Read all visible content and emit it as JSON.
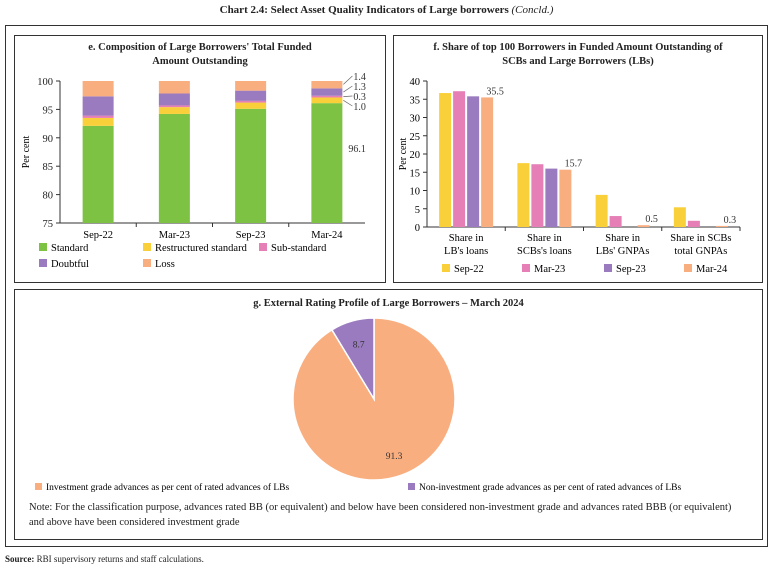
{
  "page": {
    "title": "Chart 2.4: Select Asset Quality Indicators of Large borrowers",
    "title_suffix": "(Concld.)",
    "source_label": "Source:",
    "source_text": " RBI supervisory returns and staff calculations."
  },
  "chart_data": [
    {
      "id": "e",
      "type": "bar",
      "stacked": true,
      "title": "e. Composition of Large Borrowers' Total Funded Amount Outstanding",
      "title_line1": "e. Composition of Large Borrowers' Total Funded",
      "title_line2": "Amount Outstanding",
      "xlabel": "",
      "ylabel": "Per cent",
      "ylim": [
        75,
        100
      ],
      "yticks": [
        75,
        80,
        85,
        90,
        95,
        100
      ],
      "categories": [
        "Sep-22",
        "Mar-23",
        "Sep-23",
        "Mar-24"
      ],
      "series": [
        {
          "name": "Standard",
          "color": "#7dc242",
          "values": [
            92.1,
            94.2,
            95.1,
            96.1
          ]
        },
        {
          "name": "Restructured standard",
          "color": "#f9d03a",
          "values": [
            1.4,
            1.2,
            1.1,
            1.0
          ]
        },
        {
          "name": "Sub-standard",
          "color": "#e57fb5",
          "values": [
            0.4,
            0.3,
            0.3,
            0.3
          ]
        },
        {
          "name": "Doubtful",
          "color": "#9b7bbf",
          "values": [
            3.4,
            2.1,
            1.8,
            1.3
          ]
        },
        {
          "name": "Loss",
          "color": "#f9ae80",
          "values": [
            2.7,
            2.2,
            1.7,
            1.4
          ]
        }
      ],
      "annotations": [
        {
          "category": "Mar-24",
          "series": "Loss",
          "text": "1.4"
        },
        {
          "category": "Mar-24",
          "series": "Doubtful",
          "text": "1.3"
        },
        {
          "category": "Mar-24",
          "series": "Sub-standard",
          "text": "0.3"
        },
        {
          "category": "Mar-24",
          "series": "Restructured standard",
          "text": "1.0"
        },
        {
          "category": "Mar-24",
          "series": "Standard",
          "text": "96.1"
        }
      ],
      "legend": "bottom",
      "grid": false
    },
    {
      "id": "f",
      "type": "bar",
      "stacked": false,
      "title": "f. Share of top 100 Borrowers in Funded Amount Outstanding of SCBs and Large Borrowers (LBs)",
      "title_line1": "f. Share of top 100 Borrowers in Funded Amount Outstanding of",
      "title_line2": "SCBs and Large Borrowers (LBs)",
      "xlabel": "",
      "ylabel": "Per cent",
      "ylim": [
        0,
        40
      ],
      "yticks": [
        0,
        5,
        10,
        15,
        20,
        25,
        30,
        35,
        40
      ],
      "categories": [
        [
          "Share in",
          "LB's loans"
        ],
        [
          "Share in",
          "SCBs's loans"
        ],
        [
          "Share in",
          "LBs' GNPAs"
        ],
        [
          "Share in SCBs",
          "total GNPAs"
        ]
      ],
      "series": [
        {
          "name": "Sep-22",
          "color": "#f9d03a",
          "values": [
            36.7,
            17.5,
            8.8,
            5.4
          ]
        },
        {
          "name": "Mar-23",
          "color": "#e57fb5",
          "values": [
            37.2,
            17.2,
            3.0,
            1.7
          ]
        },
        {
          "name": "Sep-23",
          "color": "#9b7bbf",
          "values": [
            35.8,
            16.0,
            0.0,
            0.0
          ]
        },
        {
          "name": "Mar-24",
          "color": "#f9ae80",
          "values": [
            35.5,
            15.7,
            0.5,
            0.3
          ]
        }
      ],
      "data_labels": [
        {
          "category_index": 0,
          "series": "Mar-24",
          "text": "35.5"
        },
        {
          "category_index": 1,
          "series": "Mar-24",
          "text": "15.7"
        },
        {
          "category_index": 2,
          "series": "Mar-24",
          "text": "0.5"
        },
        {
          "category_index": 3,
          "series": "Mar-24",
          "text": "0.3"
        }
      ],
      "legend": "bottom",
      "grid": false
    },
    {
      "id": "g",
      "type": "pie",
      "title": "g. External Rating Profile of Large Borrowers – March 2024",
      "slices": [
        {
          "name": "Investment grade advances as per cent of rated advances of LBs",
          "value": 91.3,
          "label": "91.3",
          "color": "#f9ae80"
        },
        {
          "name": "Non-investment grade advances as per cent of rated advances of LBs",
          "value": 8.7,
          "label": "8.7",
          "color": "#9b7bbf"
        }
      ],
      "legend": "bottom",
      "note": "Note: For the classification purpose, advances rated BB (or equivalent) and below have been considered non-investment grade and advances rated BBB (or equivalent) and above have been considered investment grade"
    }
  ]
}
